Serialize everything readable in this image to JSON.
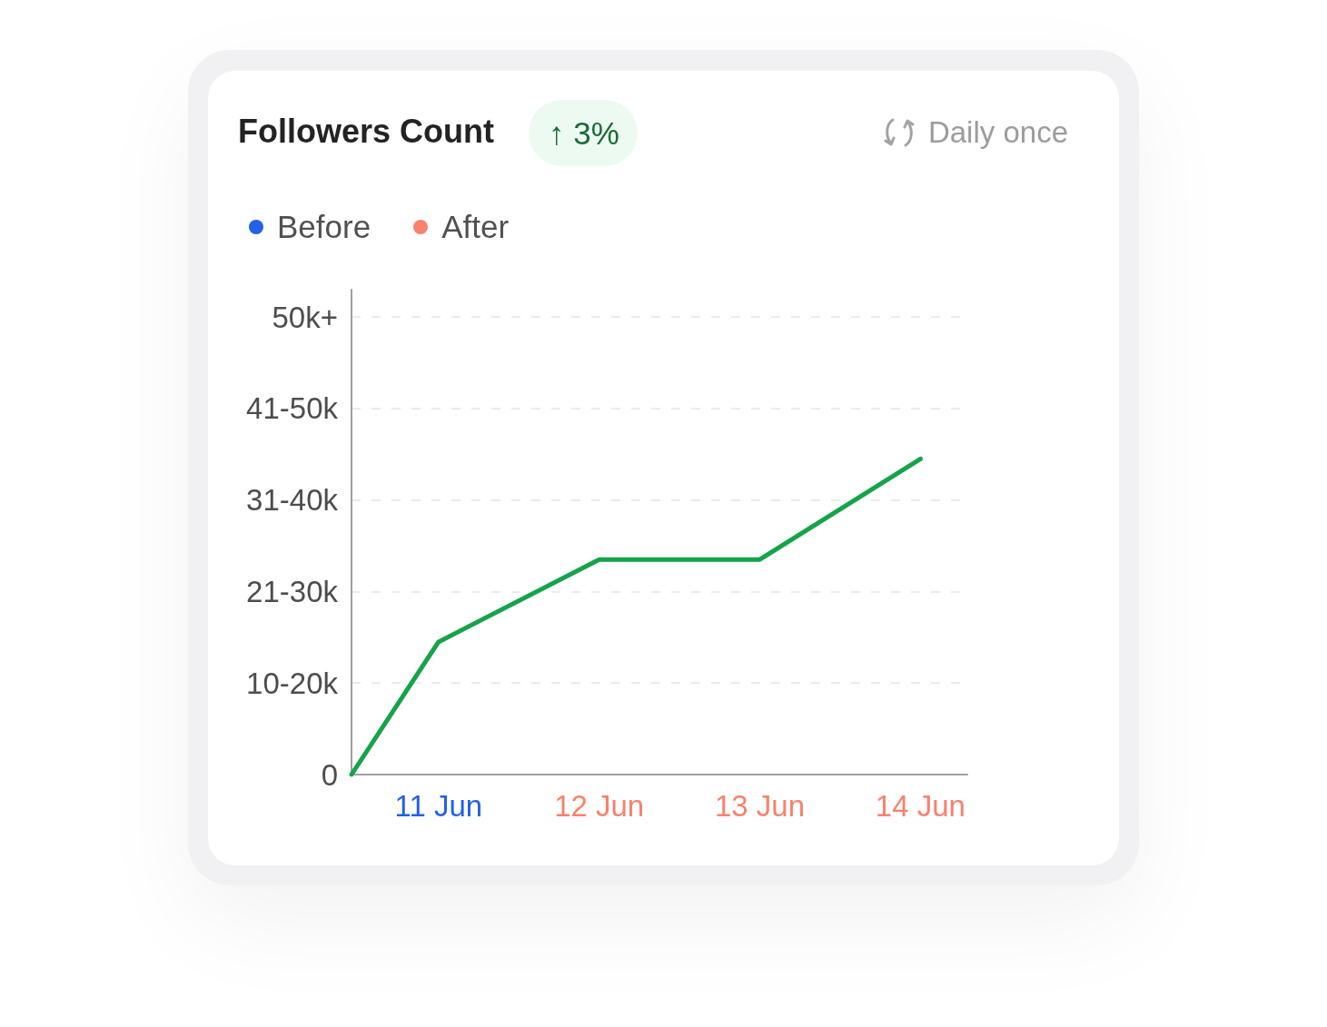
{
  "chart_data": {
    "type": "line",
    "title": "Followers Count",
    "annotations": [
      "↑ 3%",
      "Daily once",
      "Before",
      "After"
    ],
    "x": [
      "--06-10T11:00",
      "--06-11",
      "--06-12",
      "--06-13",
      "--06-14"
    ],
    "values": [
      0,
      14500,
      23500,
      23500,
      34500
    ],
    "color": "#16a34a",
    "xlim": [
      "--06-10T11:00",
      "--06-14T07:00"
    ],
    "xticks": [
      {
        "value": "--06-11",
        "label": "11 Jun"
      },
      {
        "value": "--06-12",
        "label": "12 Jun"
      },
      {
        "value": "--06-13",
        "label": "13 Jun"
      },
      {
        "value": "--06-14",
        "label": "14 Jun"
      }
    ],
    "ylim": [
      0,
      53000
    ],
    "yticks": [
      0,
      {
        "value": 10000,
        "label": "10-20k"
      },
      {
        "value": 20000,
        "label": "21-30k"
      },
      {
        "value": 30000,
        "label": "31-40k"
      },
      {
        "value": 40000,
        "label": "41-50k"
      },
      {
        "value": 50000,
        "label": "50k+"
      }
    ],
    "grid": "y",
    "marker": "none",
    "line_style": "solid"
  }
}
